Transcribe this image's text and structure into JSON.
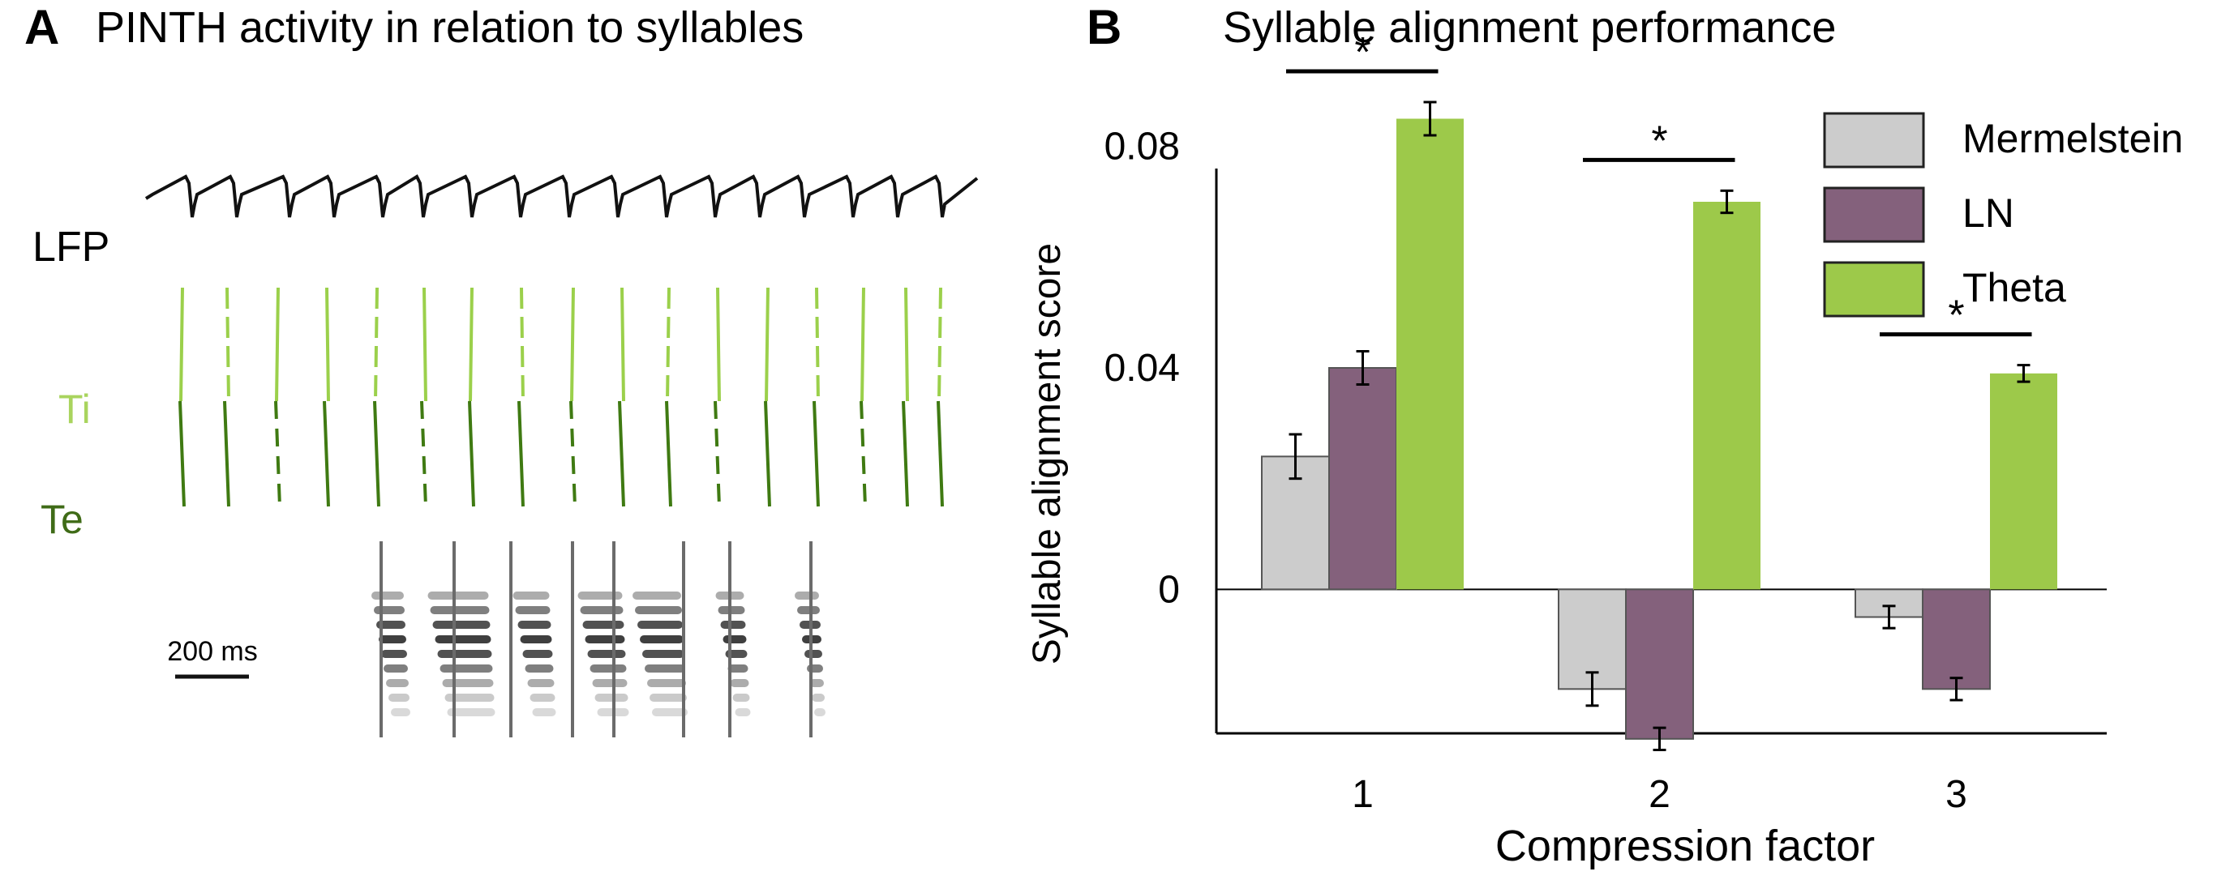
{
  "panels": [
    {
      "letter": "A",
      "title": "PINTH activity in relation to syllables"
    },
    {
      "letter": "B",
      "title": "Syllable alignment performance"
    }
  ],
  "panel_a": {
    "trace_labels": [
      "LFP",
      "Ti",
      "Te"
    ],
    "scale_bar_label": "200 ms",
    "colors": {
      "lfp": "#111111",
      "ti": "#9bd04b",
      "te": "#3f7a12",
      "boundary": "#6b6b6b",
      "spectrogram": "#2a2a2a"
    }
  },
  "chart_data": {
    "type": "bar",
    "title": "Syllable alignment performance",
    "xlabel": "Compression factor",
    "ylabel": "Syllable alignment score",
    "categories": [
      "1",
      "2",
      "3"
    ],
    "ylim": [
      -0.026,
      0.076
    ],
    "yticks": [
      0,
      0.04,
      0.08
    ],
    "ytick_labels": [
      "0",
      "0.04",
      "0.08"
    ],
    "series": [
      {
        "name": "Mermelstein",
        "color": "#cccccc",
        "values": [
          0.024,
          -0.018,
          -0.005
        ],
        "errors": [
          0.004,
          0.003,
          0.002
        ]
      },
      {
        "name": "LN",
        "color": "#84617c",
        "values": [
          0.04,
          -0.027,
          -0.018
        ],
        "errors": [
          0.003,
          0.002,
          0.002
        ]
      },
      {
        "name": "Theta",
        "color": "#9dc94a",
        "values": [
          0.085,
          0.07,
          0.039
        ],
        "errors": [
          0.003,
          0.002,
          0.0015
        ]
      }
    ],
    "significance": [
      "*",
      "*",
      "*"
    ],
    "legend": "top-right",
    "grid": false
  }
}
